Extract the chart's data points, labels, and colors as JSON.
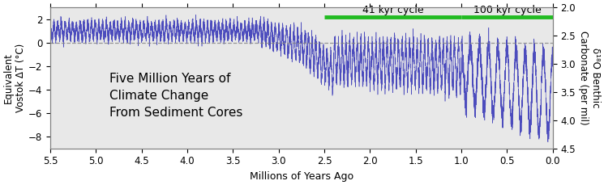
{
  "title": "Five Million Years of\nClimate Change\nFrom Sediment Cores",
  "xlabel": "Millions of Years Ago",
  "ylabel_left": "Equivalent\nVostok ΔT (°C)",
  "ylabel_right": "δ¹⁸O Benthic\nCarbonate (per mil)",
  "xlim": [
    5.5,
    0
  ],
  "ylim_left": [
    -9,
    3
  ],
  "ylim_right": [
    4.5,
    2
  ],
  "xticks": [
    5.5,
    5.0,
    4.5,
    4.0,
    3.5,
    3.0,
    2.5,
    2.0,
    1.5,
    1.0,
    0.5,
    0
  ],
  "yticks_left": [
    -8,
    -6,
    -4,
    -2,
    0,
    2
  ],
  "yticks_right": [
    2,
    2.5,
    3,
    3.5,
    4,
    4.5
  ],
  "dashed_y": 0,
  "line_color": "#4444bb",
  "green_color": "#22bb22",
  "annotation_41kyr": {
    "text": "41 kyr cycle",
    "x_start": 2.5,
    "x_end": 1.0
  },
  "annotation_100kyr": {
    "text": "100 kyr cycle",
    "x_start": 1.0,
    "x_end": 0.0
  },
  "background_color": "#ffffff",
  "plot_bg_color": "#e8e8e8",
  "figsize": [
    7.45,
    2.29
  ],
  "dpi": 100,
  "seed": 42
}
